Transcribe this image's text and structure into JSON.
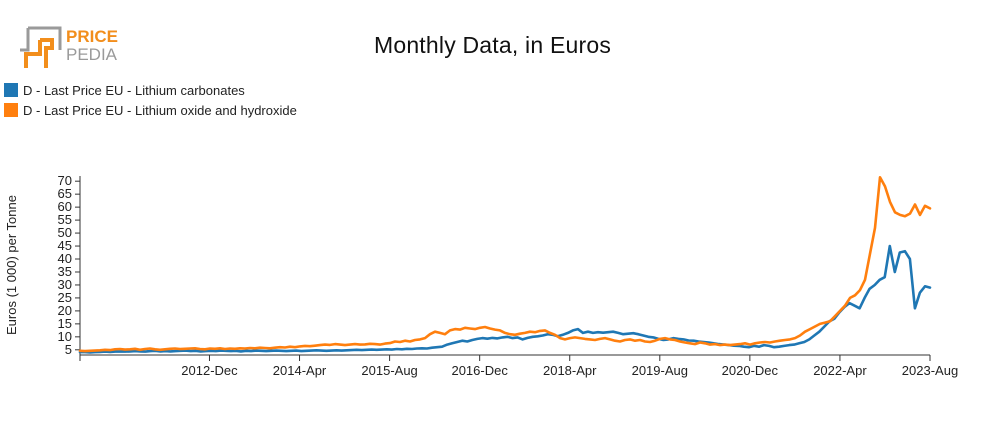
{
  "logo": {
    "line1": "PRICE",
    "line2": "PEDIA",
    "colors": {
      "orange": "#f28e1c",
      "gray": "#9a9a9a"
    }
  },
  "chart_data": {
    "type": "line",
    "title": "Monthly Data, in Euros",
    "ylabel": "Euros (1 000) per Tonne",
    "xlabel": "",
    "ylim": [
      3,
      72
    ],
    "yticks": [
      5,
      10,
      15,
      20,
      25,
      30,
      35,
      40,
      45,
      50,
      55,
      60,
      65,
      70
    ],
    "x_start": "2011-01",
    "x_end": "2023-08",
    "xticks": [
      "2012-Dec",
      "2014-Apr",
      "2015-Aug",
      "2016-Dec",
      "2018-Apr",
      "2019-Aug",
      "2020-Dec",
      "2022-Apr",
      "2023-Aug"
    ],
    "legend_position": "top-left",
    "grid": false,
    "series": [
      {
        "name": "D - Last Price EU - Lithium carbonates",
        "color": "#1f77b4",
        "values": [
          4.1,
          4.1,
          4.0,
          4.1,
          4.2,
          4.3,
          4.2,
          4.3,
          4.4,
          4.3,
          4.4,
          4.5,
          4.4,
          4.3,
          4.5,
          4.6,
          4.4,
          4.5,
          4.4,
          4.5,
          4.6,
          4.7,
          4.5,
          4.6,
          4.4,
          4.5,
          4.6,
          4.5,
          4.7,
          4.6,
          4.5,
          4.6,
          4.4,
          4.6,
          4.5,
          4.7,
          4.6,
          4.5,
          4.6,
          4.7,
          4.6,
          4.5,
          4.6,
          4.7,
          4.5,
          4.6,
          4.7,
          4.8,
          4.7,
          4.6,
          4.7,
          4.8,
          4.7,
          4.8,
          4.9,
          5.0,
          4.9,
          5.0,
          5.1,
          5.0,
          5.1,
          5.2,
          5.1,
          5.3,
          5.2,
          5.4,
          5.3,
          5.5,
          5.6,
          5.5,
          5.8,
          6.0,
          6.2,
          7.0,
          7.5,
          8.0,
          8.5,
          8.2,
          8.8,
          9.2,
          9.5,
          9.3,
          9.6,
          9.4,
          9.8,
          10.0,
          9.5,
          9.8,
          9.0,
          9.6,
          10.0,
          10.2,
          10.5,
          11.0,
          10.8,
          10.2,
          10.8,
          11.5,
          12.5,
          13.0,
          11.5,
          12.0,
          11.5,
          11.8,
          11.6,
          11.8,
          12.0,
          11.5,
          11.0,
          11.2,
          11.4,
          11.0,
          10.5,
          10.0,
          9.8,
          9.2,
          8.8,
          9.0,
          9.5,
          9.2,
          9.0,
          8.6,
          8.5,
          8.2,
          8.0,
          7.8,
          7.5,
          7.2,
          7.0,
          6.8,
          6.6,
          6.5,
          6.2,
          6.0,
          6.5,
          6.2,
          6.8,
          6.5,
          6.0,
          6.2,
          6.5,
          6.8,
          7.0,
          7.5,
          8.0,
          9.0,
          10.5,
          12.0,
          14.0,
          16.0,
          17.0,
          19.5,
          21.5,
          23.0,
          22.0,
          21.0,
          25.0,
          28.5,
          30.0,
          32.0,
          33.0,
          45.0,
          35.0,
          42.5,
          43.0,
          40.0,
          21.0,
          27.0,
          29.5,
          29.0
        ]
      },
      {
        "name": "D - Last Price EU - Lithium oxide and hydroxide",
        "color": "#ff7f0e",
        "values": [
          4.6,
          4.5,
          4.6,
          4.7,
          4.8,
          5.0,
          4.9,
          5.2,
          5.3,
          5.1,
          5.2,
          5.4,
          5.0,
          5.3,
          5.5,
          5.2,
          5.0,
          5.2,
          5.4,
          5.5,
          5.3,
          5.4,
          5.5,
          5.6,
          5.3,
          5.2,
          5.5,
          5.4,
          5.6,
          5.3,
          5.5,
          5.4,
          5.6,
          5.5,
          5.7,
          5.6,
          5.8,
          5.7,
          5.6,
          5.8,
          6.0,
          5.9,
          6.2,
          6.0,
          6.3,
          6.5,
          6.4,
          6.6,
          6.8,
          7.0,
          6.9,
          7.2,
          7.0,
          6.8,
          7.0,
          7.2,
          7.0,
          7.1,
          7.3,
          7.2,
          7.0,
          7.4,
          7.6,
          8.2,
          8.0,
          8.5,
          8.2,
          8.8,
          9.0,
          9.5,
          11.0,
          12.0,
          11.5,
          11.0,
          12.5,
          13.0,
          12.8,
          13.5,
          13.2,
          13.0,
          13.5,
          13.8,
          13.2,
          12.8,
          12.5,
          11.5,
          11.0,
          10.8,
          11.2,
          11.5,
          12.0,
          11.8,
          12.3,
          12.5,
          11.5,
          10.8,
          9.5,
          9.0,
          9.5,
          9.8,
          9.5,
          9.2,
          9.0,
          8.8,
          9.2,
          9.5,
          9.0,
          8.5,
          8.2,
          8.8,
          9.0,
          8.5,
          8.8,
          8.2,
          8.0,
          8.5,
          9.2,
          9.5,
          9.0,
          8.8,
          8.2,
          7.8,
          7.5,
          7.2,
          7.8,
          7.5,
          7.0,
          7.2,
          6.8,
          7.0,
          6.8,
          7.0,
          7.2,
          7.5,
          7.0,
          7.5,
          7.8,
          8.0,
          7.8,
          8.2,
          8.5,
          8.8,
          9.0,
          9.5,
          10.5,
          12.0,
          13.0,
          14.0,
          15.0,
          15.5,
          16.0,
          18.0,
          20.0,
          22.0,
          25.0,
          26.0,
          28.0,
          32.0,
          42.0,
          52.0,
          71.5,
          68.0,
          62.0,
          58.0,
          57.0,
          56.5,
          57.5,
          61.0,
          57.0,
          60.5,
          59.5
        ]
      }
    ]
  }
}
